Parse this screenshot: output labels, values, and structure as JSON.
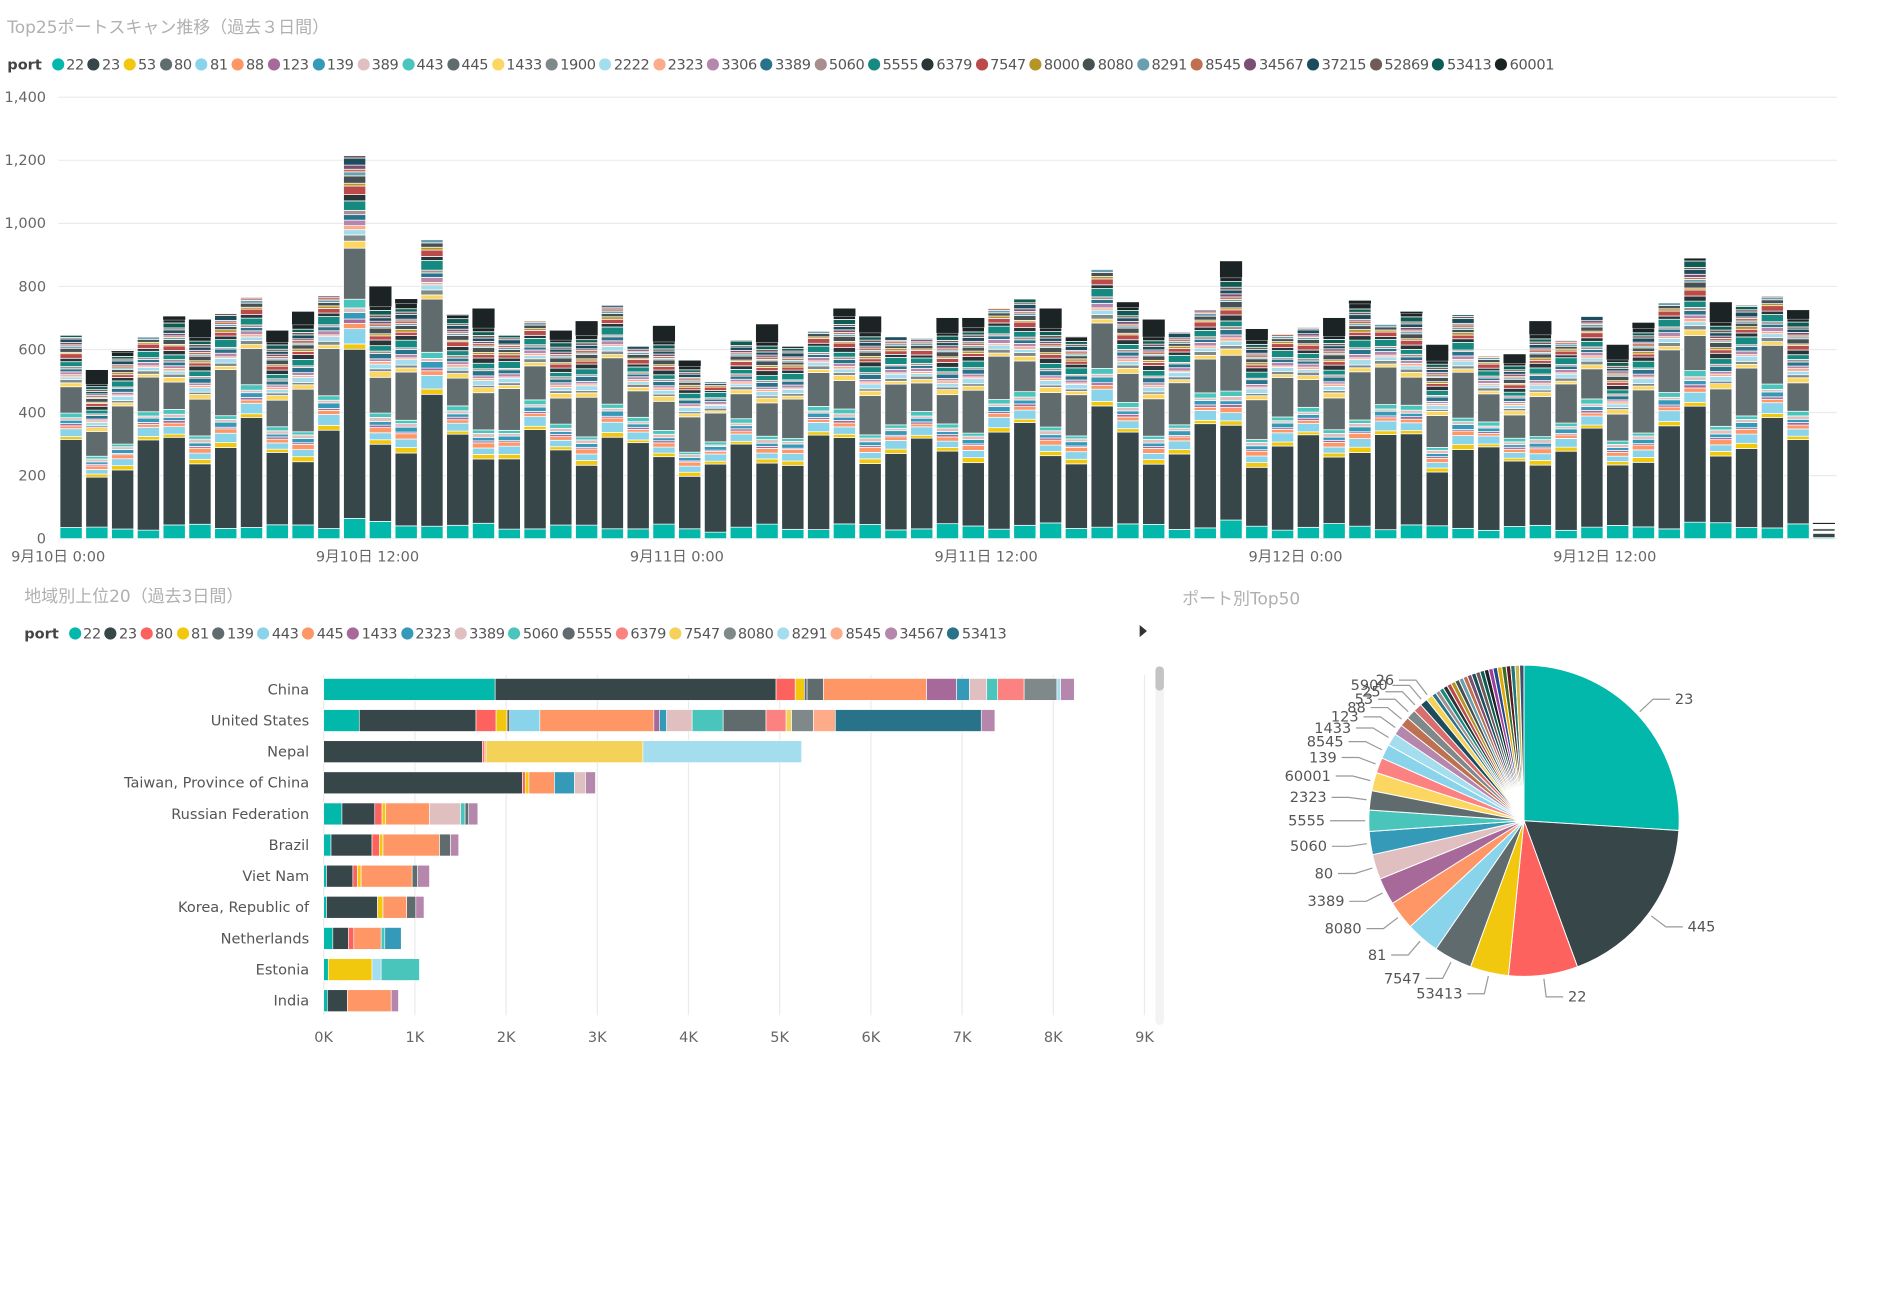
{
  "chart_data": [
    {
      "type": "bar",
      "stacked": true,
      "title": "Top25ポートスキャン推移（過去３日間）",
      "legend_title": "port",
      "legend_placement": "top",
      "x_ticks": [
        "9月10日 0:00",
        "9月10日 12:00",
        "9月11日 0:00",
        "9月11日 12:00",
        "9月12日 0:00",
        "9月12日 12:00"
      ],
      "y_ticks": [
        "0",
        "200",
        "400",
        "600",
        "800",
        "1,000",
        "1,200",
        "1,400"
      ],
      "ylim": [
        0,
        1400
      ],
      "grid": true,
      "x_interval_hours": 1,
      "series_names": [
        "22",
        "23",
        "53",
        "80",
        "81",
        "88",
        "123",
        "139",
        "389",
        "443",
        "445",
        "1433",
        "1900",
        "2222",
        "2323",
        "3306",
        "3389",
        "5060",
        "5555",
        "6379",
        "7547",
        "8000",
        "8080",
        "8291",
        "8545",
        "34567",
        "37215",
        "52869",
        "53413",
        "60001"
      ],
      "series_colors": [
        "#01B8AA",
        "#374649",
        "#F2C80F",
        "#5F6B6D",
        "#8AD4EB",
        "#FE9666",
        "#A66999",
        "#3599B8",
        "#DFBFBF",
        "#4AC5BB",
        "#5F6B6D",
        "#FBD761",
        "#7F898A",
        "#A4DDEE",
        "#FDAB89",
        "#B687AC",
        "#28738A",
        "#A78F8F",
        "#168980",
        "#293537",
        "#BB4A4A",
        "#B59525",
        "#475052",
        "#6A9FB0",
        "#BD7150",
        "#7B4F71",
        "#1B4D5C",
        "#705B5B",
        "#0F5C55",
        "#1C2325"
      ],
      "totals": [
        645,
        535,
        595,
        640,
        705,
        695,
        715,
        765,
        660,
        720,
        770,
        1215,
        800,
        760,
        950,
        710,
        730,
        645,
        690,
        660,
        690,
        740,
        610,
        675,
        565,
        500,
        630,
        680,
        610,
        660,
        730,
        705,
        640,
        635,
        700,
        700,
        730,
        760,
        730,
        640,
        855,
        750,
        695,
        655,
        725,
        880,
        665,
        650,
        670,
        700,
        755,
        680,
        720,
        615,
        710,
        580,
        585,
        690,
        630,
        705,
        615,
        685,
        750,
        890,
        750,
        740,
        770,
        725,
        50
      ]
    },
    {
      "type": "bar",
      "orientation": "horizontal",
      "stacked": true,
      "title": "地域別上位20（過去3日間）",
      "legend_title": "port",
      "legend_placement": "top",
      "legend": [
        "22",
        "23",
        "80",
        "81",
        "139",
        "443",
        "445",
        "1433",
        "2323",
        "3389",
        "5060",
        "5555",
        "6379",
        "7547",
        "8080",
        "8291",
        "8545",
        "34567",
        "53413"
      ],
      "legend_colors": [
        "#01B8AA",
        "#374649",
        "#FD625E",
        "#F2C80F",
        "#5F6B6D",
        "#8AD4EB",
        "#FE9666",
        "#A66999",
        "#3599B8",
        "#DFBFBF",
        "#4AC5BB",
        "#5F6B6D",
        "#FB8281",
        "#F4D25A",
        "#7F898A",
        "#A4DDEE",
        "#FDAB89",
        "#B687AC",
        "#28738A"
      ],
      "categories": [
        "China",
        "United States",
        "Nepal",
        "Taiwan, Province of China",
        "Russian Federation",
        "Brazil",
        "Viet Nam",
        "Korea, Republic of",
        "Netherlands",
        "Estonia",
        "India"
      ],
      "x_ticks": [
        "0K",
        "1K",
        "2K",
        "3K",
        "4K",
        "5K",
        "6K",
        "7K",
        "8K",
        "9K"
      ],
      "xlim": [
        0,
        9000
      ],
      "grid": true,
      "rows": [
        [
          [
            "22",
            1880
          ],
          [
            "23",
            3080
          ],
          [
            "80",
            210
          ],
          [
            "81",
            100
          ],
          [
            "139",
            30
          ],
          [
            "5555",
            180
          ],
          [
            "445",
            1130
          ],
          [
            "1433",
            330
          ],
          [
            "2323",
            140
          ],
          [
            "3389",
            190
          ],
          [
            "5060",
            120
          ],
          [
            "6379",
            290
          ],
          [
            "8080",
            360
          ],
          [
            "8291",
            40
          ],
          [
            "34567",
            150
          ]
        ],
        [
          [
            "22",
            390
          ],
          [
            "23",
            1280
          ],
          [
            "80",
            220
          ],
          [
            "81",
            120
          ],
          [
            "139",
            30
          ],
          [
            "443",
            330
          ],
          [
            "445",
            1250
          ],
          [
            "1433",
            60
          ],
          [
            "2323",
            80
          ],
          [
            "3389",
            280
          ],
          [
            "5060",
            340
          ],
          [
            "5555",
            470
          ],
          [
            "6379",
            220
          ],
          [
            "7547",
            60
          ],
          [
            "8080",
            240
          ],
          [
            "8545",
            240
          ],
          [
            "53413",
            1600
          ],
          [
            "34567",
            150
          ]
        ],
        [
          [
            "23",
            1740
          ],
          [
            "80",
            20
          ],
          [
            "445",
            20
          ],
          [
            "7547",
            1720
          ],
          [
            "8291",
            1740
          ]
        ],
        [
          [
            "23",
            2180
          ],
          [
            "80",
            30
          ],
          [
            "81",
            40
          ],
          [
            "445",
            280
          ],
          [
            "2323",
            220
          ],
          [
            "3389",
            120
          ],
          [
            "34567",
            110
          ]
        ],
        [
          [
            "22",
            200
          ],
          [
            "23",
            360
          ],
          [
            "80",
            80
          ],
          [
            "81",
            40
          ],
          [
            "445",
            480
          ],
          [
            "3389",
            340
          ],
          [
            "5060",
            50
          ],
          [
            "5555",
            40
          ],
          [
            "34567",
            100
          ]
        ],
        [
          [
            "22",
            80
          ],
          [
            "23",
            450
          ],
          [
            "80",
            80
          ],
          [
            "81",
            40
          ],
          [
            "445",
            620
          ],
          [
            "5555",
            120
          ],
          [
            "34567",
            90
          ]
        ],
        [
          [
            "22",
            30
          ],
          [
            "23",
            290
          ],
          [
            "80",
            50
          ],
          [
            "81",
            40
          ],
          [
            "445",
            560
          ],
          [
            "5555",
            60
          ],
          [
            "34567",
            130
          ]
        ],
        [
          [
            "22",
            30
          ],
          [
            "23",
            560
          ],
          [
            "81",
            60
          ],
          [
            "445",
            260
          ],
          [
            "5555",
            100
          ],
          [
            "34567",
            90
          ]
        ],
        [
          [
            "22",
            100
          ],
          [
            "23",
            170
          ],
          [
            "80",
            60
          ],
          [
            "445",
            300
          ],
          [
            "5060",
            40
          ],
          [
            "2323",
            180
          ]
        ],
        [
          [
            "22",
            50
          ],
          [
            "81",
            480
          ],
          [
            "8291",
            100
          ],
          [
            "5060",
            420
          ]
        ],
        [
          [
            "22",
            40
          ],
          [
            "23",
            220
          ],
          [
            "445",
            480
          ],
          [
            "34567",
            80
          ]
        ]
      ]
    },
    {
      "type": "pie",
      "title": "ポート別Top50",
      "labels_shown": [
        "23",
        "445",
        "22",
        "53413",
        "7547",
        "81",
        "8080",
        "3389",
        "80",
        "5060",
        "5555",
        "2323",
        "60001",
        "139",
        "8545",
        "1433",
        "123",
        "88",
        "53",
        "25",
        "5900",
        "26"
      ],
      "main_slices": [
        {
          "label": "23",
          "share": 0.26,
          "color": "#01B8AA"
        },
        {
          "label": "445",
          "share": 0.184,
          "color": "#374649"
        },
        {
          "label": "22",
          "share": 0.072,
          "color": "#FD625E"
        },
        {
          "label": "53413",
          "share": 0.04,
          "color": "#F2C80F"
        },
        {
          "label": "7547",
          "share": 0.04,
          "color": "#5F6B6D"
        },
        {
          "label": "81",
          "share": 0.035,
          "color": "#8AD4EB"
        },
        {
          "label": "8080",
          "share": 0.03,
          "color": "#FE9666"
        },
        {
          "label": "3389",
          "share": 0.028,
          "color": "#A66999"
        },
        {
          "label": "80",
          "share": 0.026,
          "color": "#DFBFBF"
        },
        {
          "label": "5060",
          "share": 0.024,
          "color": "#3599B8"
        },
        {
          "label": "5555",
          "share": 0.022,
          "color": "#4AC5BB"
        },
        {
          "label": "2323",
          "share": 0.02,
          "color": "#5F6B6D"
        },
        {
          "label": "60001",
          "share": 0.019,
          "color": "#FBD761"
        },
        {
          "label": "139",
          "share": 0.016,
          "color": "#FB8281"
        },
        {
          "label": "8545",
          "share": 0.015,
          "color": "#8AD4EB"
        },
        {
          "label": "1433",
          "share": 0.013,
          "color": "#A4DDEE"
        },
        {
          "label": "123",
          "share": 0.011,
          "color": "#B687AC"
        },
        {
          "label": "88",
          "share": 0.01,
          "color": "#BD7150"
        },
        {
          "label": "53",
          "share": 0.01,
          "color": "#7F898A"
        },
        {
          "label": "25",
          "share": 0.009,
          "color": "#DA6E6E"
        },
        {
          "label": "5900",
          "share": 0.008,
          "color": "#1B4D5C"
        },
        {
          "label": "26",
          "share": 0.007,
          "color": "#F4D25A"
        }
      ],
      "other_slice_colors": [
        "#28738A",
        "#A78F8F",
        "#168980",
        "#293537",
        "#BB4A4A",
        "#B59525",
        "#475052",
        "#6A9FB0",
        "#BD7150",
        "#7B4F71",
        "#1B4D5C",
        "#705B5B",
        "#0F5C55",
        "#1C2325",
        "#9F3EA0",
        "#214A8F",
        "#E5A800",
        "#3A6B2E",
        "#5C1A1A",
        "#227577",
        "#C9B74B",
        "#404F6B"
      ]
    }
  ]
}
